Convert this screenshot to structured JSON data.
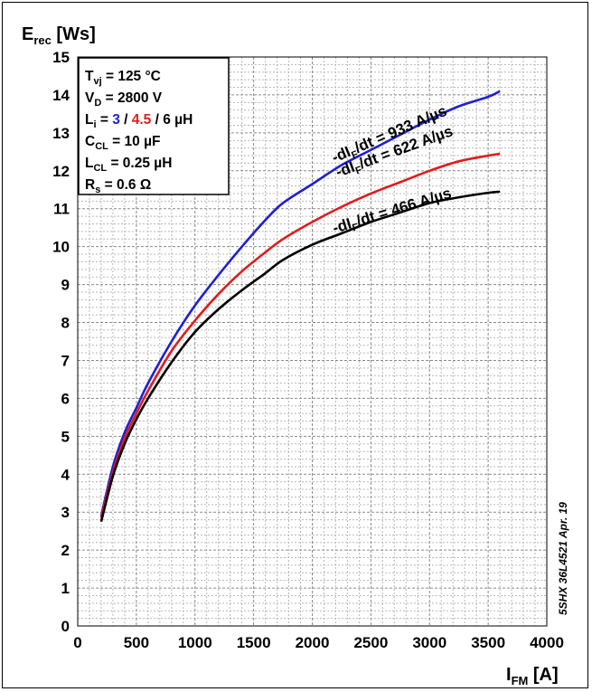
{
  "chart_data": {
    "type": "line",
    "y_title_main": "E",
    "y_title_sub": "rec",
    "y_title_unit": " [Ws]",
    "x_title_main": "I",
    "x_title_sub": "FM",
    "x_title_unit": " [A]",
    "xlim": [
      0,
      4000
    ],
    "ylim": [
      0,
      15
    ],
    "x_ticks": [
      0,
      500,
      1000,
      1500,
      2000,
      2500,
      3000,
      3500,
      4000
    ],
    "y_ticks": [
      0,
      1,
      2,
      3,
      4,
      5,
      6,
      7,
      8,
      9,
      10,
      11,
      12,
      13,
      14,
      15
    ],
    "grid": true,
    "conditions": {
      "tvj": {
        "main": "T",
        "sub": "vj",
        "value": " = 125 °C"
      },
      "vd": {
        "main": "V",
        "sub": "D",
        "value": " = 2800 V"
      },
      "li": {
        "main": "L",
        "sub": "i",
        "eq": " = ",
        "v1": "3",
        "sep1": " / ",
        "v2": "4.5",
        "sep2": " / ",
        "v3": "6 µH"
      },
      "ccl": {
        "main": "C",
        "sub": "CL",
        "value": " = 10 µF"
      },
      "lcl": {
        "main": "L",
        "sub": "CL",
        "value": " = 0.25 µH"
      },
      "rs": {
        "main": "R",
        "sub": "s",
        "value": " = 0.6 Ω"
      }
    },
    "series": [
      {
        "label_pre": "-dI",
        "label_sub": "F",
        "label_post": "/dt = 933 A/µs",
        "color": "#1f1fd6",
        "x": [
          200,
          300,
          400,
          500,
          600,
          800,
          1000,
          1200,
          1400,
          1600,
          1750,
          2000,
          2250,
          2500,
          2750,
          3000,
          3250,
          3500,
          3600
        ],
        "y": [
          2.9,
          4.2,
          5.1,
          5.75,
          6.4,
          7.5,
          8.45,
          9.25,
          10.0,
          10.7,
          11.15,
          11.65,
          12.15,
          12.55,
          12.95,
          13.35,
          13.7,
          13.95,
          14.1
        ]
      },
      {
        "label_pre": "-dI",
        "label_sub": "F",
        "label_post": "/dt = 622 A/µs",
        "color": "#e21b1b",
        "x": [
          200,
          300,
          400,
          500,
          600,
          800,
          1000,
          1200,
          1400,
          1600,
          1750,
          2000,
          2250,
          2500,
          2750,
          3000,
          3250,
          3500,
          3600
        ],
        "y": [
          2.85,
          4.05,
          4.95,
          5.6,
          6.2,
          7.25,
          8.05,
          8.75,
          9.35,
          9.85,
          10.2,
          10.65,
          11.05,
          11.4,
          11.7,
          12.0,
          12.25,
          12.4,
          12.45
        ]
      },
      {
        "label_pre": "-dI",
        "label_sub": "F",
        "label_post": "/dt = 466 A/µs",
        "color": "#000000",
        "x": [
          200,
          300,
          400,
          500,
          600,
          800,
          1000,
          1200,
          1400,
          1600,
          1750,
          2000,
          2250,
          2500,
          2750,
          3000,
          3250,
          3500,
          3600
        ],
        "y": [
          2.75,
          3.95,
          4.8,
          5.45,
          6.0,
          6.95,
          7.75,
          8.35,
          8.85,
          9.3,
          9.65,
          10.05,
          10.35,
          10.65,
          10.9,
          11.15,
          11.3,
          11.42,
          11.45
        ]
      }
    ],
    "side_note": "5SHX 36L4521 Apr. 19"
  }
}
